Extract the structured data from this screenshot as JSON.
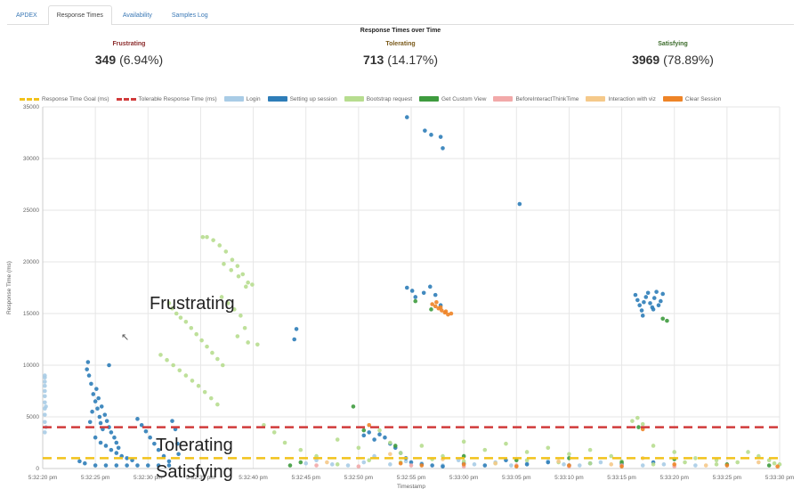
{
  "tabs": [
    {
      "label": "APDEX",
      "active": false
    },
    {
      "label": "Response Times",
      "active": true
    },
    {
      "label": "Availability",
      "active": false
    },
    {
      "label": "Samples Log",
      "active": false
    }
  ],
  "summary": {
    "frustrating": {
      "label": "Frustrating",
      "count": "349",
      "pct": "(6.94%)"
    },
    "tolerating": {
      "label": "Tolerating",
      "count": "713",
      "pct": "(14.17%)"
    },
    "satisfying": {
      "label": "Satisfying",
      "count": "3969",
      "pct": "(78.89%)"
    }
  },
  "overlays": {
    "frustrating": "Frustrating",
    "tolerating": "Tolerating",
    "satisfying": "Satisfying"
  },
  "chart_data": {
    "type": "scatter",
    "title": "Response Times over Time",
    "xlabel": "Timestamp",
    "ylabel": "Response Time (ms)",
    "ylim": [
      0,
      35000
    ],
    "yticks": [
      0,
      5000,
      10000,
      15000,
      20000,
      25000,
      30000,
      35000
    ],
    "xlim": [
      "5:32:20 pm",
      "5:33:30 pm"
    ],
    "xticks": [
      "5:32:20 pm",
      "5:32:25 pm",
      "5:32:30 pm",
      "5:32:35 pm",
      "5:32:40 pm",
      "5:32:45 pm",
      "5:32:50 pm",
      "5:32:55 pm",
      "5:33:00 pm",
      "5:33:05 pm",
      "5:33:10 pm",
      "5:33:15 pm",
      "5:33:20 pm",
      "5:33:25 pm",
      "5:33:30 pm"
    ],
    "grid": true,
    "legend_position": "top",
    "reference_lines": [
      {
        "name": "Response Time Goal (ms)",
        "y": 1000,
        "color": "#f2c21b"
      },
      {
        "name": "Tolerable Response Time (ms)",
        "y": 4000,
        "color": "#d13b3b"
      }
    ],
    "series": [
      {
        "name": "Login",
        "color": "#a9cce6",
        "points": [
          [
            0.2,
            3500
          ],
          [
            0.2,
            4500
          ],
          [
            0.2,
            5200
          ],
          [
            0.2,
            5800
          ],
          [
            0.2,
            6400
          ],
          [
            0.2,
            7000
          ],
          [
            0.2,
            7500
          ],
          [
            0.2,
            8000
          ],
          [
            0.2,
            8400
          ],
          [
            0.2,
            8800
          ],
          [
            0.2,
            9000
          ],
          [
            0.3,
            6000
          ],
          [
            0.3,
            4000
          ],
          [
            25.0,
            500
          ],
          [
            26.0,
            800
          ],
          [
            27.5,
            400
          ],
          [
            29.0,
            300
          ],
          [
            30.5,
            600
          ],
          [
            31.5,
            1200
          ],
          [
            33.0,
            400
          ],
          [
            34.5,
            700
          ],
          [
            36.0,
            500
          ],
          [
            38.0,
            300
          ],
          [
            39.5,
            800
          ],
          [
            41.0,
            400
          ],
          [
            43.0,
            600
          ],
          [
            44.5,
            300
          ],
          [
            46.0,
            500
          ],
          [
            48.0,
            700
          ],
          [
            49.5,
            400
          ],
          [
            51.0,
            300
          ],
          [
            53.0,
            600
          ],
          [
            55.0,
            500
          ],
          [
            57.0,
            300
          ],
          [
            59.0,
            400
          ],
          [
            62.0,
            300
          ]
        ]
      },
      {
        "name": "Setting up session",
        "color": "#2e7db8",
        "points": [
          [
            4.2,
            9600
          ],
          [
            4.3,
            10300
          ],
          [
            4.4,
            9000
          ],
          [
            4.6,
            8200
          ],
          [
            4.8,
            7200
          ],
          [
            5.0,
            6500
          ],
          [
            5.2,
            5800
          ],
          [
            5.4,
            5000
          ],
          [
            5.5,
            4400
          ],
          [
            5.7,
            3800
          ],
          [
            4.5,
            4500
          ],
          [
            4.7,
            5500
          ],
          [
            5.1,
            7700
          ],
          [
            5.3,
            6800
          ],
          [
            5.6,
            6000
          ],
          [
            5.9,
            5200
          ],
          [
            6.1,
            4600
          ],
          [
            6.3,
            4000
          ],
          [
            6.5,
            3500
          ],
          [
            6.8,
            3000
          ],
          [
            7.0,
            2500
          ],
          [
            7.2,
            2000
          ],
          [
            5.0,
            3000
          ],
          [
            5.5,
            2500
          ],
          [
            6.0,
            2200
          ],
          [
            6.5,
            1800
          ],
          [
            7.0,
            1500
          ],
          [
            7.5,
            1200
          ],
          [
            8.0,
            1000
          ],
          [
            8.5,
            800
          ],
          [
            9.0,
            4800
          ],
          [
            9.4,
            4200
          ],
          [
            9.8,
            3600
          ],
          [
            10.2,
            3000
          ],
          [
            10.6,
            2400
          ],
          [
            11.0,
            1800
          ],
          [
            11.5,
            1200
          ],
          [
            12.0,
            700
          ],
          [
            12.3,
            4600
          ],
          [
            12.6,
            3800
          ],
          [
            12.8,
            2400
          ],
          [
            12.9,
            1400
          ],
          [
            3.5,
            700
          ],
          [
            4.0,
            500
          ],
          [
            5.0,
            300
          ],
          [
            6.0,
            300
          ],
          [
            7.0,
            300
          ],
          [
            8.0,
            300
          ],
          [
            9.0,
            300
          ],
          [
            10.0,
            300
          ],
          [
            11.0,
            300
          ],
          [
            12.0,
            300
          ],
          [
            6.3,
            10000
          ],
          [
            24.1,
            13500
          ],
          [
            23.9,
            12500
          ],
          [
            34.6,
            34000
          ],
          [
            36.3,
            32700
          ],
          [
            36.9,
            32300
          ],
          [
            37.8,
            32100
          ],
          [
            38.0,
            31000
          ],
          [
            45.3,
            25600
          ],
          [
            34.6,
            17500
          ],
          [
            35.1,
            17200
          ],
          [
            35.4,
            16600
          ],
          [
            36.2,
            17000
          ],
          [
            36.8,
            17600
          ],
          [
            37.3,
            16800
          ],
          [
            37.8,
            15800
          ],
          [
            40.0,
            500
          ],
          [
            42.0,
            300
          ],
          [
            44.0,
            800
          ],
          [
            46.0,
            400
          ],
          [
            48.0,
            600
          ],
          [
            50.0,
            300
          ],
          [
            52.0,
            500
          ],
          [
            55.0,
            400
          ],
          [
            58.0,
            600
          ],
          [
            56.3,
            16800
          ],
          [
            56.5,
            16300
          ],
          [
            56.7,
            15800
          ],
          [
            56.9,
            15300
          ],
          [
            57.1,
            16100
          ],
          [
            57.3,
            16600
          ],
          [
            57.5,
            17000
          ],
          [
            57.7,
            16000
          ],
          [
            57.9,
            15600
          ],
          [
            58.1,
            16500
          ],
          [
            58.3,
            17100
          ],
          [
            58.5,
            15800
          ],
          [
            58.7,
            16200
          ],
          [
            58.9,
            16900
          ],
          [
            57.0,
            14800
          ],
          [
            58.0,
            15400
          ],
          [
            30.5,
            3200
          ],
          [
            31.0,
            3500
          ],
          [
            31.5,
            2800
          ],
          [
            32.0,
            3300
          ],
          [
            32.5,
            3000
          ],
          [
            33.0,
            2400
          ],
          [
            33.5,
            2000
          ],
          [
            34.0,
            1500
          ],
          [
            34.5,
            1000
          ],
          [
            35.0,
            600
          ],
          [
            36.0,
            400
          ],
          [
            37.0,
            300
          ],
          [
            38.0,
            200
          ]
        ]
      },
      {
        "name": "Bootstrap request",
        "color": "#b7dd8f",
        "points": [
          [
            12.0,
            16000
          ],
          [
            12.3,
            15500
          ],
          [
            12.7,
            15000
          ],
          [
            13.1,
            14600
          ],
          [
            13.6,
            14200
          ],
          [
            14.1,
            13600
          ],
          [
            14.6,
            13000
          ],
          [
            15.1,
            12400
          ],
          [
            15.6,
            11800
          ],
          [
            16.1,
            11200
          ],
          [
            16.6,
            10600
          ],
          [
            17.1,
            10000
          ],
          [
            11.2,
            11000
          ],
          [
            11.8,
            10500
          ],
          [
            12.4,
            10000
          ],
          [
            13.0,
            9500
          ],
          [
            13.6,
            9000
          ],
          [
            14.2,
            8500
          ],
          [
            14.8,
            8000
          ],
          [
            15.4,
            7400
          ],
          [
            16.0,
            6800
          ],
          [
            16.6,
            6200
          ],
          [
            15.2,
            22400
          ],
          [
            15.6,
            22400
          ],
          [
            16.2,
            22100
          ],
          [
            16.8,
            21600
          ],
          [
            17.4,
            21000
          ],
          [
            18.0,
            20200
          ],
          [
            18.5,
            19600
          ],
          [
            19.0,
            18800
          ],
          [
            19.5,
            18000
          ],
          [
            17.2,
            19800
          ],
          [
            17.9,
            19200
          ],
          [
            18.6,
            18600
          ],
          [
            19.3,
            17600
          ],
          [
            19.9,
            17800
          ],
          [
            17.0,
            16600
          ],
          [
            17.6,
            16000
          ],
          [
            18.2,
            15400
          ],
          [
            18.8,
            14800
          ],
          [
            19.2,
            13600
          ],
          [
            18.5,
            12800
          ],
          [
            19.5,
            12200
          ],
          [
            20.4,
            12000
          ],
          [
            21.0,
            4200
          ],
          [
            22.0,
            3500
          ],
          [
            23.0,
            2500
          ],
          [
            24.5,
            1800
          ],
          [
            26.0,
            1200
          ],
          [
            28.0,
            2800
          ],
          [
            30.0,
            2000
          ],
          [
            32.0,
            3700
          ],
          [
            33.0,
            2500
          ],
          [
            34.0,
            1500
          ],
          [
            36.0,
            2200
          ],
          [
            38.0,
            1200
          ],
          [
            40.0,
            2600
          ],
          [
            42.0,
            1800
          ],
          [
            44.0,
            2400
          ],
          [
            46.0,
            1600
          ],
          [
            48.0,
            2000
          ],
          [
            50.0,
            1400
          ],
          [
            52.0,
            1800
          ],
          [
            54.0,
            1200
          ],
          [
            56.0,
            4600
          ],
          [
            56.5,
            4900
          ],
          [
            57.0,
            4300
          ],
          [
            58.0,
            2200
          ],
          [
            60.0,
            1600
          ],
          [
            62.0,
            1000
          ],
          [
            64.0,
            800
          ],
          [
            66.0,
            600
          ],
          [
            28.0,
            400
          ],
          [
            31.0,
            800
          ],
          [
            34.0,
            600
          ],
          [
            37.0,
            900
          ],
          [
            40.0,
            700
          ],
          [
            43.0,
            500
          ],
          [
            46.0,
            800
          ],
          [
            49.0,
            600
          ],
          [
            52.0,
            500
          ],
          [
            55.0,
            700
          ],
          [
            58.0,
            400
          ],
          [
            61.0,
            600
          ],
          [
            64.0,
            400
          ],
          [
            67.0,
            1600
          ],
          [
            68.0,
            1200
          ],
          [
            69.0,
            800
          ],
          [
            69.5,
            500
          ],
          [
            70.0,
            400
          ]
        ]
      },
      {
        "name": "Get Custom View",
        "color": "#3e9b3e",
        "points": [
          [
            29.5,
            6000
          ],
          [
            30.5,
            3700
          ],
          [
            33.5,
            2200
          ],
          [
            35.4,
            16200
          ],
          [
            36.9,
            15400
          ],
          [
            58.9,
            14500
          ],
          [
            59.3,
            14300
          ],
          [
            56.6,
            4000
          ],
          [
            40.0,
            1200
          ],
          [
            45.0,
            800
          ],
          [
            50.0,
            1000
          ],
          [
            55.0,
            600
          ],
          [
            60.0,
            900
          ],
          [
            65.0,
            400
          ],
          [
            69.0,
            300
          ],
          [
            23.5,
            300
          ],
          [
            24.5,
            600
          ]
        ]
      },
      {
        "name": "BeforeInteractThinkTime",
        "color": "#f2a9a9",
        "points": [
          [
            26.0,
            300
          ],
          [
            30.0,
            200
          ],
          [
            35.0,
            300
          ],
          [
            40.0,
            200
          ],
          [
            45.0,
            300
          ],
          [
            50.0,
            200
          ],
          [
            55.0,
            300
          ],
          [
            60.0,
            200
          ]
        ]
      },
      {
        "name": "Interaction with viz",
        "color": "#f5c98a",
        "points": [
          [
            27.0,
            600
          ],
          [
            33.0,
            1400
          ],
          [
            38.0,
            900
          ],
          [
            43.0,
            500
          ],
          [
            49.0,
            700
          ],
          [
            54.0,
            400
          ],
          [
            57.0,
            1000
          ],
          [
            63.0,
            300
          ],
          [
            68.0,
            600
          ]
        ]
      },
      {
        "name": "Clear Session",
        "color": "#ee8427",
        "points": [
          [
            37.0,
            15900
          ],
          [
            37.3,
            15700
          ],
          [
            37.6,
            15500
          ],
          [
            37.9,
            15300
          ],
          [
            38.2,
            15100
          ],
          [
            38.5,
            14900
          ],
          [
            38.8,
            15000
          ],
          [
            37.4,
            16100
          ],
          [
            37.8,
            15600
          ],
          [
            38.3,
            15200
          ],
          [
            31.0,
            4200
          ],
          [
            34.0,
            500
          ],
          [
            36.0,
            300
          ],
          [
            40.0,
            400
          ],
          [
            45.0,
            200
          ],
          [
            50.0,
            300
          ],
          [
            55.0,
            200
          ],
          [
            57.0,
            3800
          ],
          [
            60.0,
            400
          ],
          [
            65.0,
            300
          ],
          [
            69.8,
            200
          ]
        ]
      }
    ]
  }
}
